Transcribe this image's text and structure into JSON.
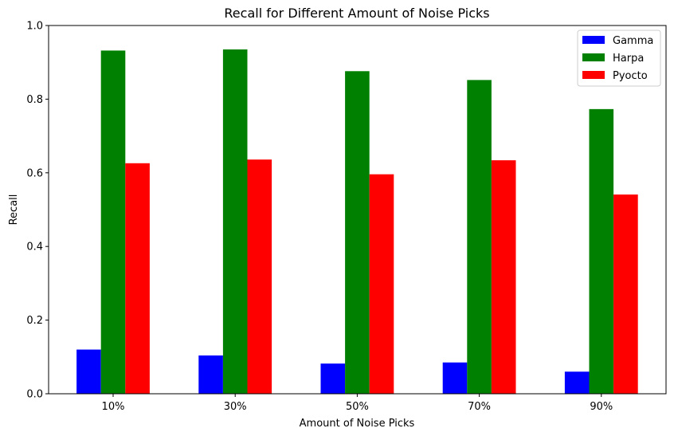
{
  "chart_data": {
    "type": "bar",
    "title": "Recall for Different Amount of Noise Picks",
    "xlabel": "Amount of Noise Picks",
    "ylabel": "Recall",
    "categories": [
      "10%",
      "30%",
      "50%",
      "70%",
      "90%"
    ],
    "ylim": [
      0,
      1.0
    ],
    "yticks": [
      "0.0",
      "0.2",
      "0.4",
      "0.6",
      "0.8",
      "1.0"
    ],
    "grid": false,
    "legend_position": "top-right",
    "series": [
      {
        "name": "Gamma",
        "color": "#0000ff",
        "values": [
          0.12,
          0.104,
          0.082,
          0.085,
          0.06
        ]
      },
      {
        "name": "Harpa",
        "color": "#008000",
        "values": [
          0.932,
          0.935,
          0.876,
          0.852,
          0.773
        ]
      },
      {
        "name": "Pyocto",
        "color": "#ff0000",
        "values": [
          0.626,
          0.636,
          0.596,
          0.634,
          0.541
        ]
      }
    ]
  }
}
